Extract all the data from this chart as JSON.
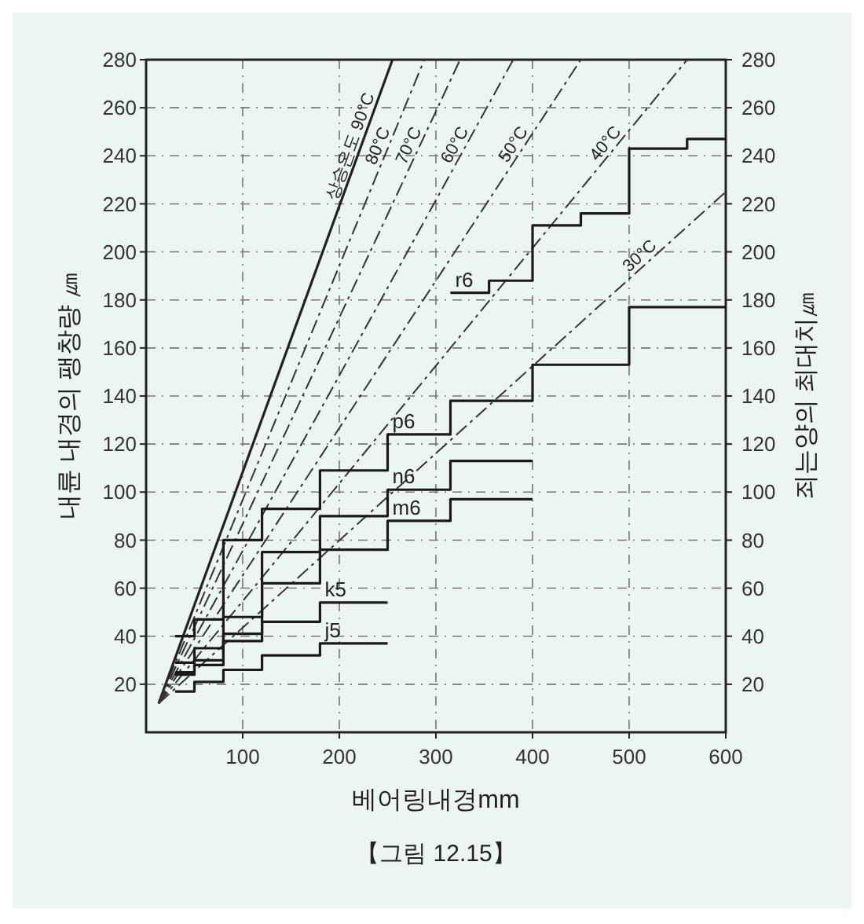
{
  "chart_data": {
    "type": "line",
    "xlabel": "베어링내경mm",
    "ylabel": "내륜 내경의 팽창량 ㎛",
    "y2label": "죄는양의 최대치㎛",
    "annotations": [
      "【그림 12.15】"
    ],
    "xlim": [
      0,
      600
    ],
    "xticks": [
      100,
      200,
      300,
      400,
      500,
      600
    ],
    "ylim": [
      0,
      280
    ],
    "yticks": [
      20,
      40,
      60,
      80,
      100,
      120,
      140,
      160,
      180,
      200,
      220,
      240,
      260,
      280
    ],
    "y2lim": [
      0,
      280
    ],
    "y2ticks": [
      20,
      40,
      60,
      80,
      100,
      120,
      140,
      160,
      180,
      200,
      220,
      240,
      260,
      280
    ],
    "grid": true,
    "series": [
      {
        "name": "상승온도 90°C",
        "color": "#222222",
        "line_style": "solid",
        "x": [
          13,
          255
        ],
        "values": [
          12,
          280
        ]
      },
      {
        "name": "80°C",
        "color": "#333333",
        "line_style": "dashed",
        "x": [
          13,
          288
        ],
        "values": [
          12,
          280
        ]
      },
      {
        "name": "70°C",
        "color": "#333333",
        "line_style": "dashed",
        "x": [
          13,
          325
        ],
        "values": [
          12,
          280
        ]
      },
      {
        "name": "60°C",
        "color": "#333333",
        "line_style": "dashed",
        "x": [
          13,
          380
        ],
        "values": [
          12,
          280
        ]
      },
      {
        "name": "50°C",
        "color": "#333333",
        "line_style": "dashed",
        "x": [
          13,
          450
        ],
        "values": [
          12,
          280
        ]
      },
      {
        "name": "40°C",
        "color": "#333333",
        "line_style": "dashed",
        "x": [
          13,
          560
        ],
        "values": [
          12,
          280
        ]
      },
      {
        "name": "30°C",
        "color": "#333333",
        "line_style": "dashed",
        "x": [
          13,
          600
        ],
        "values": [
          12,
          225
        ]
      },
      {
        "name": "r6",
        "type": "step",
        "color": "#1a1a1a",
        "line_style": "solid",
        "x": [
          315,
          355,
          400,
          450,
          500,
          560,
          600
        ],
        "values": [
          183,
          188,
          211,
          216,
          243,
          247,
          247
        ]
      },
      {
        "name": "p6",
        "type": "step",
        "color": "#1a1a1a",
        "line_style": "solid",
        "x": [
          30,
          50,
          80,
          120,
          180,
          250,
          315,
          400,
          500,
          600
        ],
        "values": [
          40,
          47,
          80,
          93,
          109,
          124,
          138,
          153,
          177,
          177
        ]
      },
      {
        "name": "n6",
        "type": "step",
        "color": "#1a1a1a",
        "line_style": "solid",
        "x": [
          30,
          50,
          80,
          120,
          180,
          250,
          315,
          400
        ],
        "values": [
          29,
          35,
          48,
          75,
          90,
          101,
          113,
          113
        ]
      },
      {
        "name": "m6",
        "type": "step",
        "color": "#1a1a1a",
        "line_style": "solid",
        "x": [
          30,
          50,
          80,
          120,
          180,
          250,
          315,
          400
        ],
        "values": [
          25,
          30,
          41,
          62,
          76,
          88,
          97,
          97
        ]
      },
      {
        "name": "k5",
        "type": "step",
        "color": "#1a1a1a",
        "line_style": "solid",
        "x": [
          30,
          50,
          80,
          120,
          180,
          250
        ],
        "values": [
          24,
          28,
          38,
          46,
          54,
          54
        ]
      },
      {
        "name": "j5",
        "type": "step",
        "color": "#1a1a1a",
        "line_style": "solid",
        "x": [
          30,
          50,
          80,
          120,
          180,
          250
        ],
        "values": [
          17,
          21,
          26,
          32,
          37,
          37
        ]
      }
    ]
  }
}
